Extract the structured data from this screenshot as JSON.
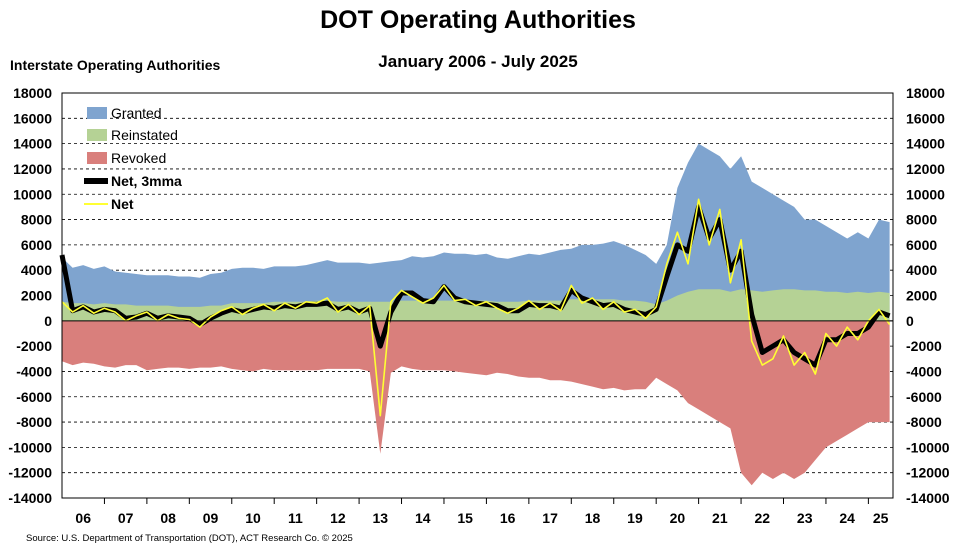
{
  "header": {
    "title": "DOT Operating Authorities",
    "subtitle": "January 2006 - July 2025",
    "y_axis_label": "Interstate Operating Authorities"
  },
  "footer": {
    "source": "Source: U.S. Department of Transportation (DOT), ACT Research Co. © 2025"
  },
  "chart_data": {
    "type": "area",
    "title": "DOT Operating Authorities",
    "subtitle": "January 2006 - July 2025",
    "ylabel": "Interstate Operating Authorities",
    "ylim": [
      -14000,
      18000
    ],
    "yticks": [
      18000,
      16000,
      14000,
      12000,
      10000,
      8000,
      6000,
      4000,
      2000,
      0,
      -2000,
      -4000,
      -6000,
      -8000,
      -10000,
      -12000,
      -14000
    ],
    "x_tick_labels": [
      "06",
      "07",
      "08",
      "09",
      "10",
      "11",
      "12",
      "13",
      "14",
      "15",
      "16",
      "17",
      "18",
      "19",
      "20",
      "21",
      "22",
      "23",
      "24",
      "25"
    ],
    "x_range": [
      2006,
      2025.58
    ],
    "grid": true,
    "legend_position": "top-left",
    "colors": {
      "granted": "#7fa4cf",
      "reinstated": "#b5d295",
      "revoked": "#d97f7c",
      "net3mma": "#000000",
      "net": "#ffff33"
    },
    "x": [
      2006.0,
      2006.25,
      2006.5,
      2006.75,
      2007.0,
      2007.25,
      2007.5,
      2007.75,
      2008.0,
      2008.25,
      2008.5,
      2008.75,
      2009.0,
      2009.25,
      2009.5,
      2009.75,
      2010.0,
      2010.25,
      2010.5,
      2010.75,
      2011.0,
      2011.25,
      2011.5,
      2011.75,
      2012.0,
      2012.25,
      2012.5,
      2012.75,
      2013.0,
      2013.25,
      2013.5,
      2013.75,
      2014.0,
      2014.25,
      2014.5,
      2014.75,
      2015.0,
      2015.25,
      2015.5,
      2015.75,
      2016.0,
      2016.25,
      2016.5,
      2016.75,
      2017.0,
      2017.25,
      2017.5,
      2017.75,
      2018.0,
      2018.25,
      2018.5,
      2018.75,
      2019.0,
      2019.25,
      2019.5,
      2019.75,
      2020.0,
      2020.25,
      2020.5,
      2020.75,
      2021.0,
      2021.25,
      2021.5,
      2021.75,
      2022.0,
      2022.25,
      2022.5,
      2022.75,
      2023.0,
      2023.25,
      2023.5,
      2023.75,
      2024.0,
      2024.25,
      2024.5,
      2024.75,
      2025.0,
      2025.25,
      2025.5
    ],
    "series": [
      {
        "name": "Granted",
        "kind": "area",
        "values": [
          5000,
          4200,
          4400,
          4100,
          4300,
          3900,
          3800,
          3700,
          3600,
          3600,
          3600,
          3500,
          3500,
          3400,
          3700,
          3800,
          4100,
          4200,
          4200,
          4100,
          4300,
          4300,
          4300,
          4400,
          4600,
          4800,
          4600,
          4600,
          4600,
          4500,
          4600,
          4700,
          4800,
          5100,
          5000,
          5100,
          5400,
          5300,
          5300,
          5200,
          5300,
          5000,
          4900,
          5100,
          5300,
          5200,
          5400,
          5600,
          5700,
          6000,
          6000,
          6100,
          6300,
          6000,
          5600,
          5200,
          4500,
          6000,
          10500,
          12500,
          14000,
          13500,
          13000,
          12000,
          13000,
          11000,
          10500,
          10000,
          9500,
          9000,
          8000,
          8000,
          7500,
          7000,
          6500,
          7000,
          6500,
          8000,
          7800
        ]
      },
      {
        "name": "Reinstated",
        "kind": "area",
        "values": [
          1500,
          1400,
          1400,
          1300,
          1400,
          1300,
          1300,
          1200,
          1200,
          1200,
          1200,
          1100,
          1100,
          1100,
          1200,
          1200,
          1400,
          1400,
          1400,
          1400,
          1500,
          1500,
          1500,
          1500,
          1600,
          1600,
          1500,
          1500,
          1500,
          1500,
          1500,
          1500,
          1600,
          1600,
          1600,
          1600,
          1600,
          1600,
          1600,
          1600,
          1600,
          1500,
          1500,
          1500,
          1600,
          1600,
          1600,
          1600,
          1700,
          1700,
          1700,
          1700,
          1700,
          1600,
          1600,
          1500,
          1300,
          1600,
          2000,
          2300,
          2500,
          2500,
          2500,
          2300,
          2500,
          2400,
          2300,
          2400,
          2500,
          2500,
          2400,
          2400,
          2300,
          2300,
          2200,
          2300,
          2200,
          2300,
          2200
        ]
      },
      {
        "name": "Revoked",
        "kind": "area",
        "values": [
          -3200,
          -3500,
          -3300,
          -3400,
          -3600,
          -3700,
          -3500,
          -3500,
          -3900,
          -3800,
          -3700,
          -3700,
          -3800,
          -3700,
          -3700,
          -3600,
          -3800,
          -3900,
          -4000,
          -3800,
          -3900,
          -3900,
          -3900,
          -3900,
          -3900,
          -3800,
          -3800,
          -3800,
          -3800,
          -4000,
          -10500,
          -4100,
          -3600,
          -3800,
          -3900,
          -3900,
          -3900,
          -4000,
          -4100,
          -4200,
          -4300,
          -4100,
          -4200,
          -4400,
          -4500,
          -4500,
          -4700,
          -4700,
          -4800,
          -5000,
          -5200,
          -5400,
          -5300,
          -5500,
          -5400,
          -5400,
          -4500,
          -5000,
          -5500,
          -6500,
          -7000,
          -7500,
          -8000,
          -8500,
          -12000,
          -13000,
          -12000,
          -12500,
          -12000,
          -12500,
          -12000,
          -11000,
          -10000,
          -9500,
          -9000,
          -8500,
          -8000,
          -8000,
          -8000
        ]
      },
      {
        "name": "Net, 3mma",
        "kind": "line",
        "values": [
          5200,
          800,
          1100,
          700,
          900,
          800,
          200,
          300,
          600,
          200,
          400,
          300,
          200,
          -300,
          200,
          600,
          900,
          700,
          900,
          1100,
          1000,
          1200,
          1100,
          1300,
          1300,
          1400,
          900,
          1100,
          700,
          1000,
          -2000,
          700,
          2200,
          2200,
          1600,
          1500,
          2700,
          1800,
          1500,
          1400,
          1300,
          1200,
          800,
          800,
          1300,
          1200,
          1200,
          1000,
          2400,
          1800,
          1500,
          1200,
          1300,
          900,
          700,
          500,
          900,
          3500,
          6000,
          5500,
          9000,
          6500,
          8000,
          4000,
          5500,
          500,
          -2500,
          -2000,
          -1500,
          -2500,
          -3000,
          -3500,
          -1500,
          -1500,
          -1000,
          -1000,
          -500,
          700,
          400
        ]
      },
      {
        "name": "Net",
        "kind": "line",
        "values": [
          1500,
          700,
          1200,
          600,
          1000,
          700,
          0,
          400,
          700,
          0,
          500,
          200,
          100,
          -500,
          300,
          800,
          1100,
          500,
          1000,
          1300,
          800,
          1400,
          1000,
          1500,
          1400,
          1800,
          700,
          1300,
          500,
          1200,
          -7500,
          1500,
          2400,
          1900,
          1400,
          1800,
          2800,
          1600,
          1700,
          1200,
          1500,
          1000,
          600,
          1000,
          1600,
          900,
          1400,
          800,
          2800,
          1400,
          1800,
          900,
          1500,
          700,
          900,
          200,
          1100,
          4500,
          7000,
          4500,
          9600,
          6000,
          8800,
          3000,
          6400,
          -1600,
          -3500,
          -3000,
          -1200,
          -3500,
          -2500,
          -4200,
          -1000,
          -2000,
          -500,
          -1500,
          0,
          900,
          -300
        ]
      }
    ]
  }
}
